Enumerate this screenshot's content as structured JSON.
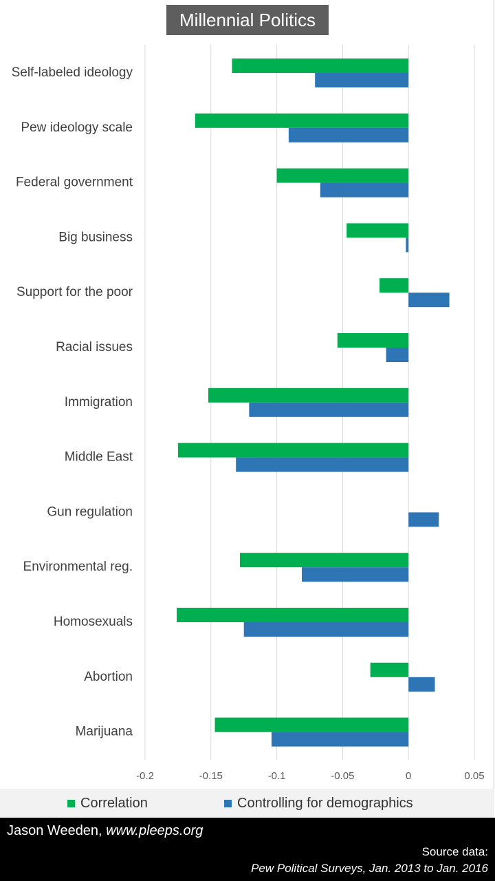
{
  "chart_data": {
    "type": "bar",
    "orientation": "horizontal",
    "title": "Millennial Politics",
    "categories": [
      "Self-labeled ideology",
      "Pew ideology scale",
      "Federal government",
      "Big business",
      "Support for the poor",
      "Racial issues",
      "Immigration",
      "Middle East",
      "Gun regulation",
      "Environmental reg.",
      "Homosexuals",
      "Abortion",
      "Marijuana"
    ],
    "series": [
      {
        "name": "Correlation",
        "color": "#00b050",
        "values": [
          -0.134,
          -0.162,
          -0.1,
          -0.047,
          -0.022,
          -0.054,
          -0.152,
          -0.175,
          0.0,
          -0.128,
          -0.176,
          -0.029,
          -0.147
        ]
      },
      {
        "name": "Controlling for demographics",
        "color": "#2e75b6",
        "values": [
          -0.071,
          -0.091,
          -0.067,
          -0.002,
          0.031,
          -0.017,
          -0.121,
          -0.131,
          0.023,
          -0.081,
          -0.125,
          0.02,
          -0.104
        ]
      }
    ],
    "xlim": [
      -0.2,
      0.05
    ],
    "xticks": [
      "-0.2",
      "-0.15",
      "-0.1",
      "-0.05",
      "0",
      "0.05"
    ],
    "xtick_values": [
      -0.2,
      -0.15,
      -0.1,
      -0.05,
      0,
      0.05
    ],
    "grid": true,
    "legend_position": "bottom"
  },
  "footer": {
    "author_name": "Jason Weeden,",
    "author_site": "www.pleeps.org",
    "source_label": "Source data:",
    "source_text": "Pew Political Surveys,  Jan. 2013 to Jan. 2016"
  },
  "colors": {
    "title_background": "#5e5e5e",
    "legend_background": "#f2f2f2",
    "footer_background": "#000000",
    "gridline": "#d9d9d9"
  }
}
